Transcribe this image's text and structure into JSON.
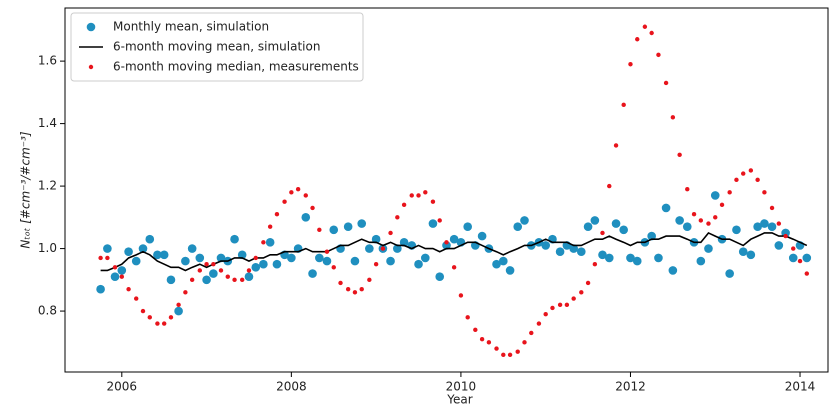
{
  "chart_data": {
    "type": "line",
    "xlabel": "Year",
    "ylabel": "Nₜₒₜ  [#cm⁻³/#cm⁻³]",
    "x": [
      2005.75,
      2005.83,
      2005.92,
      2006.0,
      2006.08,
      2006.17,
      2006.25,
      2006.33,
      2006.42,
      2006.5,
      2006.58,
      2006.67,
      2006.75,
      2006.83,
      2006.92,
      2007.0,
      2007.08,
      2007.17,
      2007.25,
      2007.33,
      2007.42,
      2007.5,
      2007.58,
      2007.67,
      2007.75,
      2007.83,
      2007.92,
      2008.0,
      2008.08,
      2008.17,
      2008.25,
      2008.33,
      2008.42,
      2008.5,
      2008.58,
      2008.67,
      2008.75,
      2008.83,
      2008.92,
      2009.0,
      2009.08,
      2009.17,
      2009.25,
      2009.33,
      2009.42,
      2009.5,
      2009.58,
      2009.67,
      2009.75,
      2009.83,
      2009.92,
      2010.0,
      2010.08,
      2010.17,
      2010.25,
      2010.33,
      2010.42,
      2010.5,
      2010.58,
      2010.67,
      2010.75,
      2010.83,
      2010.92,
      2011.0,
      2011.08,
      2011.17,
      2011.25,
      2011.33,
      2011.42,
      2011.5,
      2011.58,
      2011.67,
      2011.75,
      2011.83,
      2011.92,
      2012.0,
      2012.08,
      2012.17,
      2012.25,
      2012.33,
      2012.42,
      2012.5,
      2012.58,
      2012.67,
      2012.75,
      2012.83,
      2012.92,
      2013.0,
      2013.08,
      2013.17,
      2013.25,
      2013.33,
      2013.42,
      2013.5,
      2013.58,
      2013.67,
      2013.75,
      2013.83,
      2013.92,
      2014.0,
      2014.08
    ],
    "series": [
      {
        "name": "Monthly mean, simulation",
        "color": "#1f8fbf",
        "style": "dots",
        "values": [
          0.87,
          1.0,
          0.91,
          0.93,
          0.99,
          0.96,
          1.0,
          1.03,
          0.98,
          0.98,
          0.9,
          0.8,
          0.96,
          1.0,
          0.97,
          0.9,
          0.92,
          0.97,
          0.96,
          1.03,
          0.98,
          0.91,
          0.94,
          0.95,
          1.02,
          0.95,
          0.98,
          0.97,
          1.0,
          1.1,
          0.92,
          0.97,
          0.96,
          1.06,
          1.0,
          1.07,
          0.96,
          1.08,
          1.0,
          1.03,
          1.0,
          0.96,
          1.0,
          1.02,
          1.01,
          0.95,
          0.97,
          1.08,
          0.91,
          1.01,
          1.03,
          1.02,
          1.07,
          1.01,
          1.04,
          1.0,
          0.95,
          0.96,
          0.93,
          1.07,
          1.09,
          1.01,
          1.02,
          1.01,
          1.03,
          0.99,
          1.01,
          1.0,
          0.99,
          1.07,
          1.09,
          0.98,
          0.97,
          1.08,
          1.06,
          0.97,
          0.96,
          1.02,
          1.04,
          0.97,
          1.13,
          0.93,
          1.09,
          1.07,
          1.02,
          0.96,
          1.0,
          1.17,
          1.03,
          0.92,
          1.06,
          0.99,
          0.98,
          1.07,
          1.08,
          1.07,
          1.01,
          1.05,
          0.97,
          1.01,
          0.97
        ]
      },
      {
        "name": "6-month moving mean, simulation",
        "color": "#000000",
        "style": "line",
        "values": [
          0.93,
          0.93,
          0.94,
          0.95,
          0.97,
          0.98,
          0.99,
          0.98,
          0.96,
          0.95,
          0.94,
          0.94,
          0.93,
          0.94,
          0.95,
          0.94,
          0.95,
          0.96,
          0.96,
          0.97,
          0.97,
          0.96,
          0.97,
          0.97,
          0.98,
          0.98,
          0.99,
          0.99,
          0.99,
          1.0,
          0.99,
          0.99,
          0.99,
          1.0,
          1.01,
          1.01,
          1.02,
          1.03,
          1.02,
          1.02,
          1.01,
          1.02,
          1.01,
          1.01,
          1.0,
          1.01,
          1.0,
          1.0,
          0.99,
          1.0,
          1.0,
          1.01,
          1.02,
          1.02,
          1.01,
          1.0,
          0.99,
          0.98,
          0.99,
          1.0,
          1.01,
          1.01,
          1.02,
          1.03,
          1.02,
          1.02,
          1.02,
          1.01,
          1.01,
          1.02,
          1.03,
          1.03,
          1.04,
          1.03,
          1.02,
          1.01,
          1.02,
          1.02,
          1.03,
          1.03,
          1.04,
          1.04,
          1.04,
          1.03,
          1.02,
          1.02,
          1.05,
          1.04,
          1.03,
          1.03,
          1.02,
          1.01,
          1.03,
          1.04,
          1.05,
          1.05,
          1.04,
          1.04,
          1.03,
          1.02,
          1.01
        ]
      },
      {
        "name": "6-month moving median, measurements",
        "color": "#e8141c",
        "style": "small-dots",
        "values": [
          0.97,
          0.97,
          0.94,
          0.91,
          0.87,
          0.84,
          0.8,
          0.78,
          0.76,
          0.76,
          0.78,
          0.82,
          0.86,
          0.9,
          0.93,
          0.95,
          0.95,
          0.93,
          0.91,
          0.9,
          0.9,
          0.93,
          0.97,
          1.02,
          1.07,
          1.11,
          1.15,
          1.18,
          1.19,
          1.17,
          1.13,
          1.06,
          0.99,
          0.94,
          0.89,
          0.87,
          0.86,
          0.87,
          0.9,
          0.95,
          1.0,
          1.05,
          1.1,
          1.14,
          1.17,
          1.17,
          1.18,
          1.15,
          1.09,
          1.02,
          0.94,
          0.85,
          0.78,
          0.74,
          0.71,
          0.7,
          0.68,
          0.66,
          0.66,
          0.67,
          0.7,
          0.73,
          0.76,
          0.79,
          0.81,
          0.82,
          0.82,
          0.84,
          0.86,
          0.89,
          0.95,
          1.05,
          1.2,
          1.33,
          1.46,
          1.59,
          1.67,
          1.71,
          1.69,
          1.62,
          1.53,
          1.42,
          1.3,
          1.19,
          1.11,
          1.09,
          1.08,
          1.1,
          1.14,
          1.18,
          1.22,
          1.24,
          1.25,
          1.22,
          1.18,
          1.13,
          1.08,
          1.04,
          1.0,
          0.96,
          0.92
        ]
      }
    ],
    "xlim": [
      2005.33,
      2014.33
    ],
    "ylim": [
      0.605,
      1.77
    ],
    "xticks": [
      2006,
      2008,
      2010,
      2012,
      2014
    ],
    "yticks": [
      0.8,
      {
        "value": 1,
        "label": "1.0"
      },
      1.2,
      1.4,
      1.6
    ],
    "legend": "upper-left"
  }
}
